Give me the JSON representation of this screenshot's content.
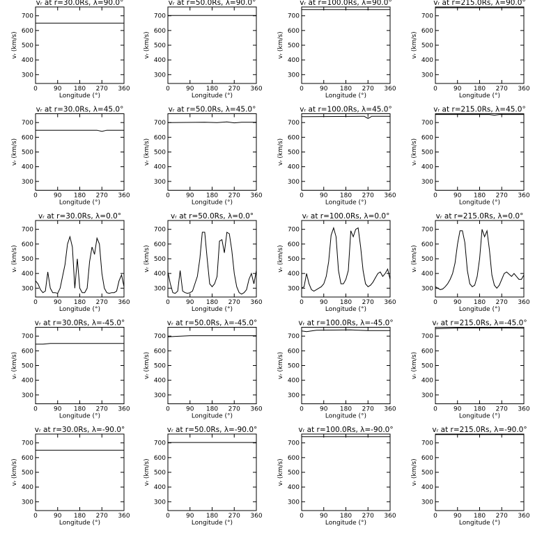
{
  "chart_data": [
    {
      "type": "line",
      "title": "vᵣ at r=30.0Rs, λ=90.0°",
      "xlabel": "Longitude (°)",
      "ylabel": "vᵣ (km/s)",
      "x": [
        0,
        360
      ],
      "values": [
        650,
        650
      ],
      "color": "#000000",
      "xlim": [
        0,
        360
      ],
      "ylim": [
        240,
        760
      ],
      "xticks": [
        0,
        90,
        180,
        270,
        360
      ],
      "yticks": [
        300,
        400,
        500,
        600,
        700
      ]
    },
    {
      "type": "line",
      "title": "vᵣ at r=50.0Rs, λ=90.0°",
      "xlabel": "Longitude (°)",
      "ylabel": "vᵣ (km/s)",
      "x": [
        0,
        360
      ],
      "values": [
        702,
        702
      ],
      "color": "#000000",
      "xlim": [
        0,
        360
      ],
      "ylim": [
        240,
        760
      ],
      "xticks": [
        0,
        90,
        180,
        270,
        360
      ],
      "yticks": [
        300,
        400,
        500,
        600,
        700
      ]
    },
    {
      "type": "line",
      "title": "vᵣ at r=100.0Rs, λ=90.0°",
      "xlabel": "Longitude (°)",
      "ylabel": "vᵣ (km/s)",
      "x": [
        0,
        360
      ],
      "values": [
        742,
        742
      ],
      "color": "#000000",
      "xlim": [
        0,
        360
      ],
      "ylim": [
        240,
        760
      ],
      "xticks": [
        0,
        90,
        180,
        270,
        360
      ],
      "yticks": [
        300,
        400,
        500,
        600,
        700
      ]
    },
    {
      "type": "line",
      "title": "vᵣ at r=215.0Rs, λ=90.0°",
      "xlabel": "Longitude (°)",
      "ylabel": "vᵣ (km/s)",
      "x": [
        0,
        360
      ],
      "values": [
        755,
        755
      ],
      "color": "#000000",
      "xlim": [
        0,
        360
      ],
      "ylim": [
        240,
        760
      ],
      "xticks": [
        0,
        90,
        180,
        270,
        360
      ],
      "yticks": [
        300,
        400,
        500,
        600,
        700
      ]
    },
    {
      "type": "line",
      "title": "vᵣ at r=30.0Rs, λ=45.0°",
      "xlabel": "Longitude (°)",
      "ylabel": "vᵣ (km/s)",
      "x": [
        0,
        250,
        270,
        290,
        360
      ],
      "values": [
        648,
        648,
        640,
        648,
        648
      ],
      "color": "#000000",
      "xlim": [
        0,
        360
      ],
      "ylim": [
        240,
        760
      ],
      "xticks": [
        0,
        90,
        180,
        270,
        360
      ],
      "yticks": [
        300,
        400,
        500,
        600,
        700
      ]
    },
    {
      "type": "line",
      "title": "vᵣ at r=50.0Rs, λ=45.0°",
      "xlabel": "Longitude (°)",
      "ylabel": "vᵣ (km/s)",
      "x": [
        0,
        150,
        200,
        240,
        270,
        300,
        360
      ],
      "values": [
        700,
        702,
        700,
        704,
        698,
        702,
        702
      ],
      "color": "#000000",
      "xlim": [
        0,
        360
      ],
      "ylim": [
        240,
        760
      ],
      "xticks": [
        0,
        90,
        180,
        270,
        360
      ],
      "yticks": [
        300,
        400,
        500,
        600,
        700
      ]
    },
    {
      "type": "line",
      "title": "vᵣ at r=100.0Rs, λ=45.0°",
      "xlabel": "Longitude (°)",
      "ylabel": "vᵣ (km/s)",
      "x": [
        0,
        240,
        255,
        270,
        285,
        360
      ],
      "values": [
        740,
        742,
        742,
        728,
        742,
        742
      ],
      "color": "#000000",
      "xlim": [
        0,
        360
      ],
      "ylim": [
        240,
        760
      ],
      "xticks": [
        0,
        90,
        180,
        270,
        360
      ],
      "yticks": [
        300,
        400,
        500,
        600,
        700
      ]
    },
    {
      "type": "line",
      "title": "vᵣ at r=215.0Rs, λ=45.0°",
      "xlabel": "Longitude (°)",
      "ylabel": "vᵣ (km/s)",
      "x": [
        0,
        220,
        240,
        260,
        360
      ],
      "values": [
        755,
        755,
        750,
        755,
        755
      ],
      "color": "#000000",
      "xlim": [
        0,
        360
      ],
      "ylim": [
        240,
        760
      ],
      "xticks": [
        0,
        90,
        180,
        270,
        360
      ],
      "yticks": [
        300,
        400,
        500,
        600,
        700
      ]
    },
    {
      "type": "line",
      "title": "vᵣ at r=30.0Rs, λ=0.0°",
      "xlabel": "Longitude (°)",
      "ylabel": "vᵣ (km/s)",
      "x": [
        0,
        10,
        20,
        30,
        40,
        50,
        60,
        70,
        80,
        90,
        100,
        110,
        120,
        130,
        140,
        150,
        160,
        170,
        180,
        190,
        200,
        210,
        220,
        230,
        240,
        250,
        260,
        270,
        280,
        290,
        300,
        310,
        320,
        330,
        340,
        350,
        360
      ],
      "values": [
        350,
        330,
        290,
        270,
        280,
        410,
        300,
        270,
        270,
        265,
        300,
        380,
        460,
        600,
        650,
        580,
        300,
        500,
        300,
        270,
        270,
        300,
        480,
        580,
        530,
        640,
        600,
        400,
        300,
        270,
        265,
        270,
        270,
        280,
        350,
        390,
        310
      ],
      "color": "#000000",
      "xlim": [
        0,
        360
      ],
      "ylim": [
        240,
        760
      ],
      "xticks": [
        0,
        90,
        180,
        270,
        360
      ],
      "yticks": [
        300,
        400,
        500,
        600,
        700
      ]
    },
    {
      "type": "line",
      "title": "vᵣ at r=50.0Rs, λ=0.0°",
      "xlabel": "Longitude (°)",
      "ylabel": "vᵣ (km/s)",
      "x": [
        0,
        10,
        20,
        30,
        40,
        50,
        60,
        70,
        80,
        90,
        100,
        110,
        120,
        130,
        140,
        150,
        160,
        170,
        180,
        190,
        200,
        210,
        220,
        230,
        240,
        250,
        260,
        270,
        280,
        290,
        300,
        310,
        320,
        330,
        340,
        350,
        360
      ],
      "values": [
        410,
        330,
        270,
        265,
        280,
        420,
        280,
        270,
        265,
        270,
        280,
        330,
        380,
        500,
        680,
        680,
        500,
        330,
        310,
        330,
        380,
        620,
        630,
        540,
        680,
        670,
        560,
        400,
        310,
        270,
        260,
        270,
        290,
        360,
        400,
        330,
        420
      ],
      "color": "#000000",
      "xlim": [
        0,
        360
      ],
      "ylim": [
        240,
        760
      ],
      "xticks": [
        0,
        90,
        180,
        270,
        360
      ],
      "yticks": [
        300,
        400,
        500,
        600,
        700
      ]
    },
    {
      "type": "line",
      "title": "vᵣ at r=100.0Rs, λ=0.0°",
      "xlabel": "Longitude (°)",
      "ylabel": "vᵣ (km/s)",
      "x": [
        0,
        10,
        20,
        30,
        40,
        50,
        60,
        70,
        80,
        90,
        100,
        110,
        120,
        130,
        140,
        150,
        160,
        170,
        180,
        190,
        200,
        210,
        220,
        230,
        240,
        250,
        260,
        270,
        280,
        290,
        300,
        310,
        320,
        330,
        340,
        350,
        360
      ],
      "values": [
        300,
        310,
        400,
        330,
        290,
        280,
        290,
        300,
        310,
        330,
        380,
        480,
        660,
        710,
        650,
        420,
        330,
        330,
        360,
        420,
        690,
        650,
        700,
        710,
        580,
        420,
        330,
        310,
        320,
        340,
        370,
        400,
        410,
        380,
        400,
        430,
        360
      ],
      "color": "#000000",
      "xlim": [
        0,
        360
      ],
      "ylim": [
        240,
        760
      ],
      "xticks": [
        0,
        90,
        180,
        270,
        360
      ],
      "yticks": [
        300,
        400,
        500,
        600,
        700
      ]
    },
    {
      "type": "line",
      "title": "vᵣ at r=215.0Rs, λ=0.0°",
      "xlabel": "Longitude (°)",
      "ylabel": "vᵣ (km/s)",
      "x": [
        0,
        10,
        20,
        30,
        40,
        50,
        60,
        70,
        80,
        90,
        100,
        110,
        120,
        130,
        140,
        150,
        160,
        170,
        180,
        190,
        200,
        210,
        220,
        230,
        240,
        250,
        260,
        270,
        280,
        290,
        300,
        310,
        320,
        330,
        340,
        350,
        360
      ],
      "values": [
        310,
        300,
        290,
        295,
        310,
        330,
        360,
        400,
        470,
        600,
        690,
        690,
        610,
        420,
        330,
        310,
        320,
        380,
        500,
        700,
        650,
        690,
        560,
        390,
        320,
        300,
        320,
        360,
        400,
        410,
        395,
        380,
        400,
        380,
        360,
        360,
        390
      ],
      "color": "#000000",
      "xlim": [
        0,
        360
      ],
      "ylim": [
        240,
        760
      ],
      "xticks": [
        0,
        90,
        180,
        270,
        360
      ],
      "yticks": [
        300,
        400,
        500,
        600,
        700
      ]
    },
    {
      "type": "line",
      "title": "vᵣ at r=30.0Rs, λ=-45.0°",
      "xlabel": "Longitude (°)",
      "ylabel": "vᵣ (km/s)",
      "x": [
        0,
        30,
        60,
        360
      ],
      "values": [
        645,
        645,
        650,
        650
      ],
      "color": "#000000",
      "xlim": [
        0,
        360
      ],
      "ylim": [
        240,
        760
      ],
      "xticks": [
        0,
        90,
        180,
        270,
        360
      ],
      "yticks": [
        300,
        400,
        500,
        600,
        700
      ]
    },
    {
      "type": "line",
      "title": "vᵣ at r=50.0Rs, λ=-45.0°",
      "xlabel": "Longitude (°)",
      "ylabel": "vᵣ (km/s)",
      "x": [
        0,
        30,
        90,
        360
      ],
      "values": [
        695,
        698,
        703,
        703
      ],
      "color": "#000000",
      "xlim": [
        0,
        360
      ],
      "ylim": [
        240,
        760
      ],
      "xticks": [
        0,
        90,
        180,
        270,
        360
      ],
      "yticks": [
        300,
        400,
        500,
        600,
        700
      ]
    },
    {
      "type": "line",
      "title": "vᵣ at r=100.0Rs, λ=-45.0°",
      "xlabel": "Longitude (°)",
      "ylabel": "vᵣ (km/s)",
      "x": [
        0,
        20,
        60,
        200,
        270,
        360
      ],
      "values": [
        735,
        730,
        740,
        742,
        738,
        738
      ],
      "color": "#000000",
      "xlim": [
        0,
        360
      ],
      "ylim": [
        240,
        760
      ],
      "xticks": [
        0,
        90,
        180,
        270,
        360
      ],
      "yticks": [
        300,
        400,
        500,
        600,
        700
      ]
    },
    {
      "type": "line",
      "title": "vᵣ at r=215.0Rs, λ=-45.0°",
      "xlabel": "Longitude (°)",
      "ylabel": "vᵣ (km/s)",
      "x": [
        0,
        30,
        90,
        300,
        360
      ],
      "values": [
        750,
        752,
        755,
        755,
        753
      ],
      "color": "#000000",
      "xlim": [
        0,
        360
      ],
      "ylim": [
        240,
        760
      ],
      "xticks": [
        0,
        90,
        180,
        270,
        360
      ],
      "yticks": [
        300,
        400,
        500,
        600,
        700
      ]
    },
    {
      "type": "line",
      "title": "vᵣ at r=30.0Rs, λ=-90.0°",
      "xlabel": "Longitude (°)",
      "ylabel": "vᵣ (km/s)",
      "x": [
        0,
        360
      ],
      "values": [
        650,
        650
      ],
      "color": "#000000",
      "xlim": [
        0,
        360
      ],
      "ylim": [
        240,
        760
      ],
      "xticks": [
        0,
        90,
        180,
        270,
        360
      ],
      "yticks": [
        300,
        400,
        500,
        600,
        700
      ]
    },
    {
      "type": "line",
      "title": "vᵣ at r=50.0Rs, λ=-90.0°",
      "xlabel": "Longitude (°)",
      "ylabel": "vᵣ (km/s)",
      "x": [
        0,
        360
      ],
      "values": [
        703,
        703
      ],
      "color": "#000000",
      "xlim": [
        0,
        360
      ],
      "ylim": [
        240,
        760
      ],
      "xticks": [
        0,
        90,
        180,
        270,
        360
      ],
      "yticks": [
        300,
        400,
        500,
        600,
        700
      ]
    },
    {
      "type": "line",
      "title": "vᵣ at r=100.0Rs, λ=-90.0°",
      "xlabel": "Longitude (°)",
      "ylabel": "vᵣ (km/s)",
      "x": [
        0,
        360
      ],
      "values": [
        742,
        742
      ],
      "color": "#000000",
      "xlim": [
        0,
        360
      ],
      "ylim": [
        240,
        760
      ],
      "xticks": [
        0,
        90,
        180,
        270,
        360
      ],
      "yticks": [
        300,
        400,
        500,
        600,
        700
      ]
    },
    {
      "type": "line",
      "title": "vᵣ at r=215.0Rs, λ=-90.0°",
      "xlabel": "Longitude (°)",
      "ylabel": "vᵣ (km/s)",
      "x": [
        0,
        360
      ],
      "values": [
        756,
        756
      ],
      "color": "#000000",
      "xlim": [
        0,
        360
      ],
      "ylim": [
        240,
        760
      ],
      "xticks": [
        0,
        90,
        180,
        270,
        360
      ],
      "yticks": [
        300,
        400,
        500,
        600,
        700
      ]
    }
  ]
}
